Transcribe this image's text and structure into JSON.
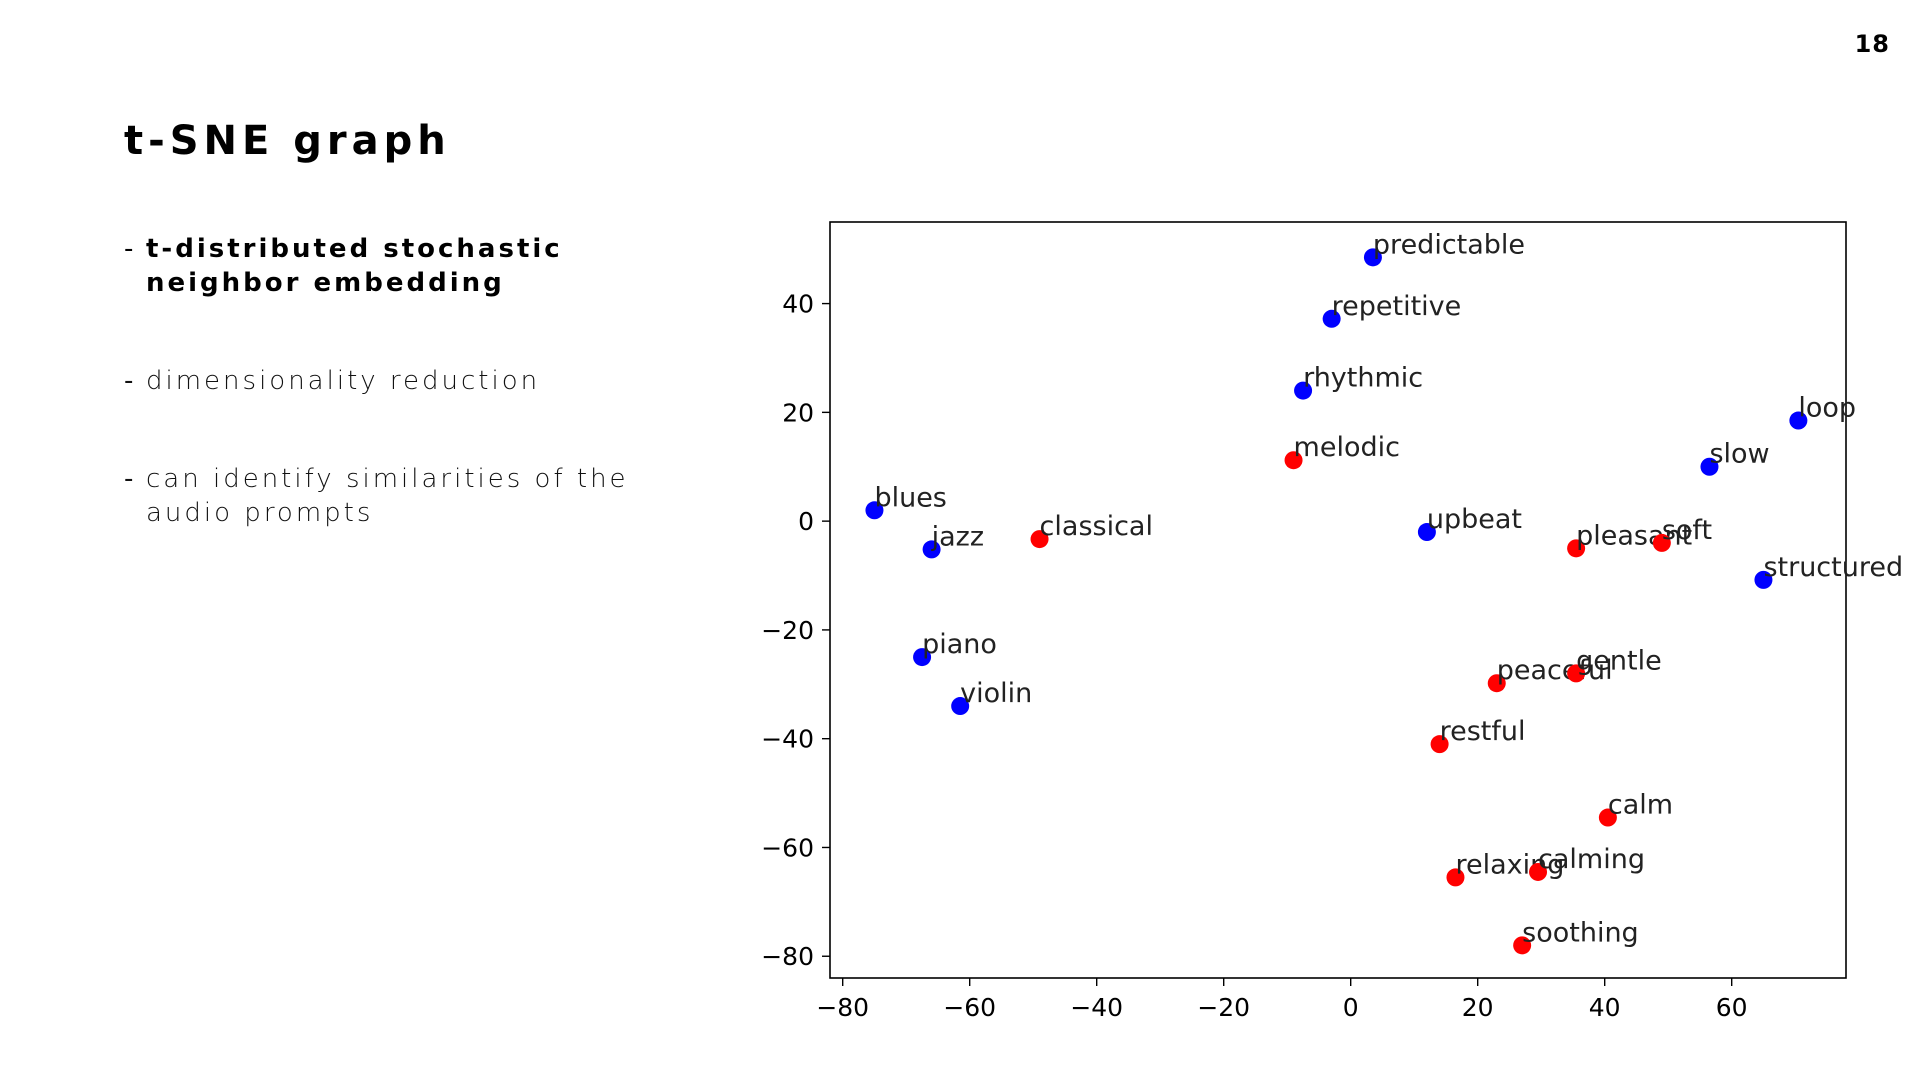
{
  "page_number": "18",
  "slide": {
    "title": "t-SNE graph",
    "bullets": [
      {
        "dash": "-",
        "text": "t-distributed stochastic neighbor embedding",
        "emphasis": "bold"
      },
      {
        "dash": "-",
        "text": "dimensionality reduction",
        "emphasis": "normal"
      },
      {
        "dash": "-",
        "text": "can identify similarities of the audio prompts",
        "emphasis": "normal"
      }
    ]
  },
  "colors": {
    "blue": "#0000ff",
    "red": "#ff0000"
  },
  "chart_data": {
    "type": "scatter",
    "title": "",
    "xlabel": "",
    "ylabel": "",
    "xlim": [
      -82,
      78
    ],
    "ylim": [
      -84,
      55
    ],
    "grid": false,
    "xticks": [
      -80,
      -60,
      -40,
      -20,
      0,
      20,
      40,
      60
    ],
    "yticks": [
      40,
      20,
      0,
      -20,
      -40,
      -60,
      -80
    ],
    "points": [
      {
        "label": "predictable",
        "x": 3.5,
        "y": 48.5,
        "color": "blue"
      },
      {
        "label": "repetitive",
        "x": -3,
        "y": 37.2,
        "color": "blue"
      },
      {
        "label": "rhythmic",
        "x": -7.5,
        "y": 24,
        "color": "blue"
      },
      {
        "label": "melodic",
        "x": -9,
        "y": 11.2,
        "color": "red"
      },
      {
        "label": "loop",
        "x": 70.5,
        "y": 18.5,
        "color": "blue"
      },
      {
        "label": "slow",
        "x": 56.5,
        "y": 10,
        "color": "blue"
      },
      {
        "label": "blues",
        "x": -75,
        "y": 2,
        "color": "blue"
      },
      {
        "label": "jazz",
        "x": -66,
        "y": -5.2,
        "color": "blue"
      },
      {
        "label": "classical",
        "x": -49,
        "y": -3.3,
        "color": "red"
      },
      {
        "label": "upbeat",
        "x": 12,
        "y": -2,
        "color": "blue"
      },
      {
        "label": "pleasant",
        "x": 35.5,
        "y": -5,
        "color": "red"
      },
      {
        "label": "soft",
        "x": 49,
        "y": -4,
        "color": "red"
      },
      {
        "label": "structured",
        "x": 65,
        "y": -10.8,
        "color": "blue"
      },
      {
        "label": "piano",
        "x": -67.5,
        "y": -25,
        "color": "blue"
      },
      {
        "label": "violin",
        "x": -61.5,
        "y": -34,
        "color": "blue"
      },
      {
        "label": "peaceful",
        "x": 23,
        "y": -29.8,
        "color": "red"
      },
      {
        "label": "gentle",
        "x": 35.5,
        "y": -28,
        "color": "red"
      },
      {
        "label": "restful",
        "x": 14,
        "y": -41,
        "color": "red"
      },
      {
        "label": "calm",
        "x": 40.5,
        "y": -54.5,
        "color": "red"
      },
      {
        "label": "relaxing",
        "x": 16.5,
        "y": -65.5,
        "color": "red"
      },
      {
        "label": "calming",
        "x": 29.5,
        "y": -64.5,
        "color": "red"
      },
      {
        "label": "soothing",
        "x": 27,
        "y": -78,
        "color": "red"
      }
    ]
  }
}
